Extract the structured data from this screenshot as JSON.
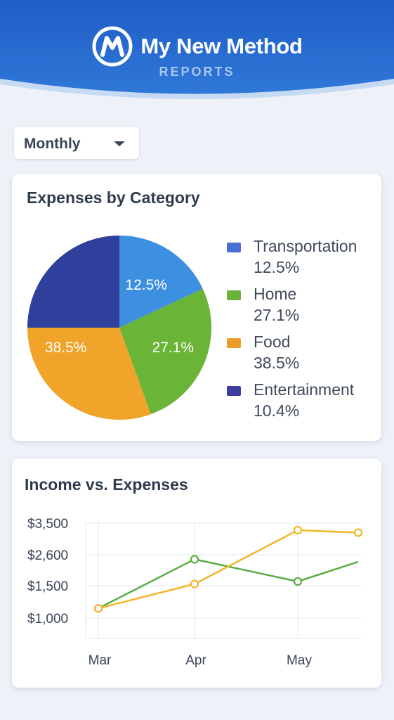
{
  "header": {
    "title": "My New Method",
    "subtitle": "REPORTS",
    "logo_icon": "m-logo-icon",
    "colors": {
      "top": "#1f5dc6",
      "bottom": "#2f78d8"
    }
  },
  "period_select": {
    "value": "Monthly",
    "icon": "chevron-down-icon"
  },
  "expenses_card": {
    "title": "Expenses by Category"
  },
  "income_card": {
    "title": "Income vs. Expenses"
  },
  "chart_data": [
    {
      "type": "pie",
      "title": "Expenses by Category",
      "slices": [
        {
          "name": "Transportation",
          "value": 12.5,
          "label": "12.5%",
          "color": "#3d8fe0",
          "show_label": true
        },
        {
          "name": "Home",
          "value": 27.1,
          "label": "27.1%",
          "color": "#6ab437",
          "show_label": true
        },
        {
          "name": "Food",
          "value": 38.5,
          "label": "38.5%",
          "color": "#f0a52a",
          "show_label": true
        },
        {
          "name": "Entertainment",
          "value": 10.4,
          "label": "10.4%",
          "color": "#2e3f9c",
          "show_label": false
        }
      ],
      "legend": [
        {
          "name": "Transportation",
          "pct": "12.5%",
          "color": "#4b6fd4"
        },
        {
          "name": "Home",
          "pct": "27.1%",
          "color": "#6ab437"
        },
        {
          "name": "Food",
          "pct": "38.5%",
          "color": "#ef9b25"
        },
        {
          "name": "Entertainment",
          "pct": "10.4%",
          "color": "#3c3d9c"
        }
      ],
      "legend_position": "right"
    },
    {
      "type": "line",
      "title": "Income vs. Expenses",
      "categories": [
        "Mar",
        "Apr",
        "May"
      ],
      "y_ticks": [
        "$3,500",
        "$2,600",
        "$1,500",
        "$1,000"
      ],
      "grid": true,
      "series": [
        {
          "color": "#5aad43",
          "points": [
            {
              "x": "Mar",
              "y": 1150,
              "marker": true
            },
            {
              "x": "Apr",
              "y": 2440,
              "marker": true
            },
            {
              "x": "May",
              "y": 1650,
              "marker": true
            },
            {
              "x": "after-May",
              "y": 2350,
              "marker": false
            }
          ]
        },
        {
          "color": "#f2b629",
          "points": [
            {
              "x": "Mar",
              "y": 1150,
              "marker": true
            },
            {
              "x": "Apr",
              "y": 1560,
              "marker": true
            },
            {
              "x": "May",
              "y": 3300,
              "marker": true
            },
            {
              "x": "after-May",
              "y": 3230,
              "marker": true
            }
          ]
        }
      ]
    }
  ]
}
